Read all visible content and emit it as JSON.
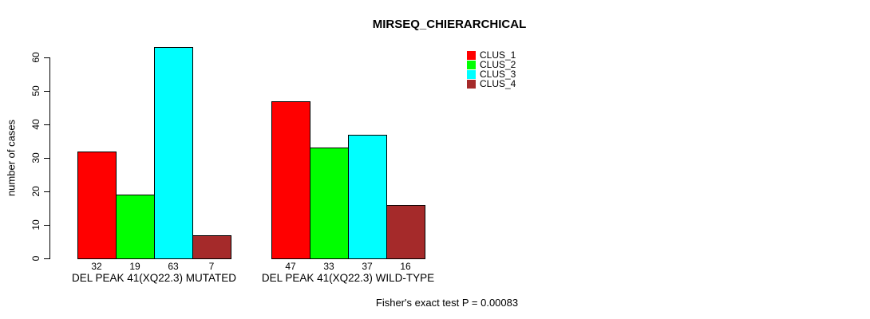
{
  "title": "MIRSEQ_CHIERARCHICAL",
  "footer": "Fisher's exact test P = 0.00083",
  "colors": {
    "background": "#ffffff",
    "axis": "#000000",
    "text": "#000000"
  },
  "chart_data": {
    "type": "bar",
    "title": "MIRSEQ_CHIERARCHICAL",
    "xlabel": "",
    "ylabel": "number of cases",
    "ylim": [
      0,
      60
    ],
    "yticks": [
      0,
      10,
      20,
      30,
      40,
      50,
      60
    ],
    "grid": false,
    "legend_position": "top-right",
    "bar_value_labels_shown": true,
    "series": [
      {
        "name": "CLUS_1",
        "color": "#ff0000",
        "values": [
          32,
          47
        ]
      },
      {
        "name": "CLUS_2",
        "color": "#00ff00",
        "values": [
          19,
          33
        ]
      },
      {
        "name": "CLUS_3",
        "color": "#00ffff",
        "values": [
          63,
          37
        ]
      },
      {
        "name": "CLUS_4",
        "color": "#a52a2a",
        "values": [
          7,
          16
        ]
      }
    ],
    "categories": [
      "DEL PEAK 41(XQ22.3) MUTATED",
      "DEL PEAK 41(XQ22.3) WILD-TYPE"
    ],
    "annotation": "Fisher's exact test P = 0.00083"
  }
}
